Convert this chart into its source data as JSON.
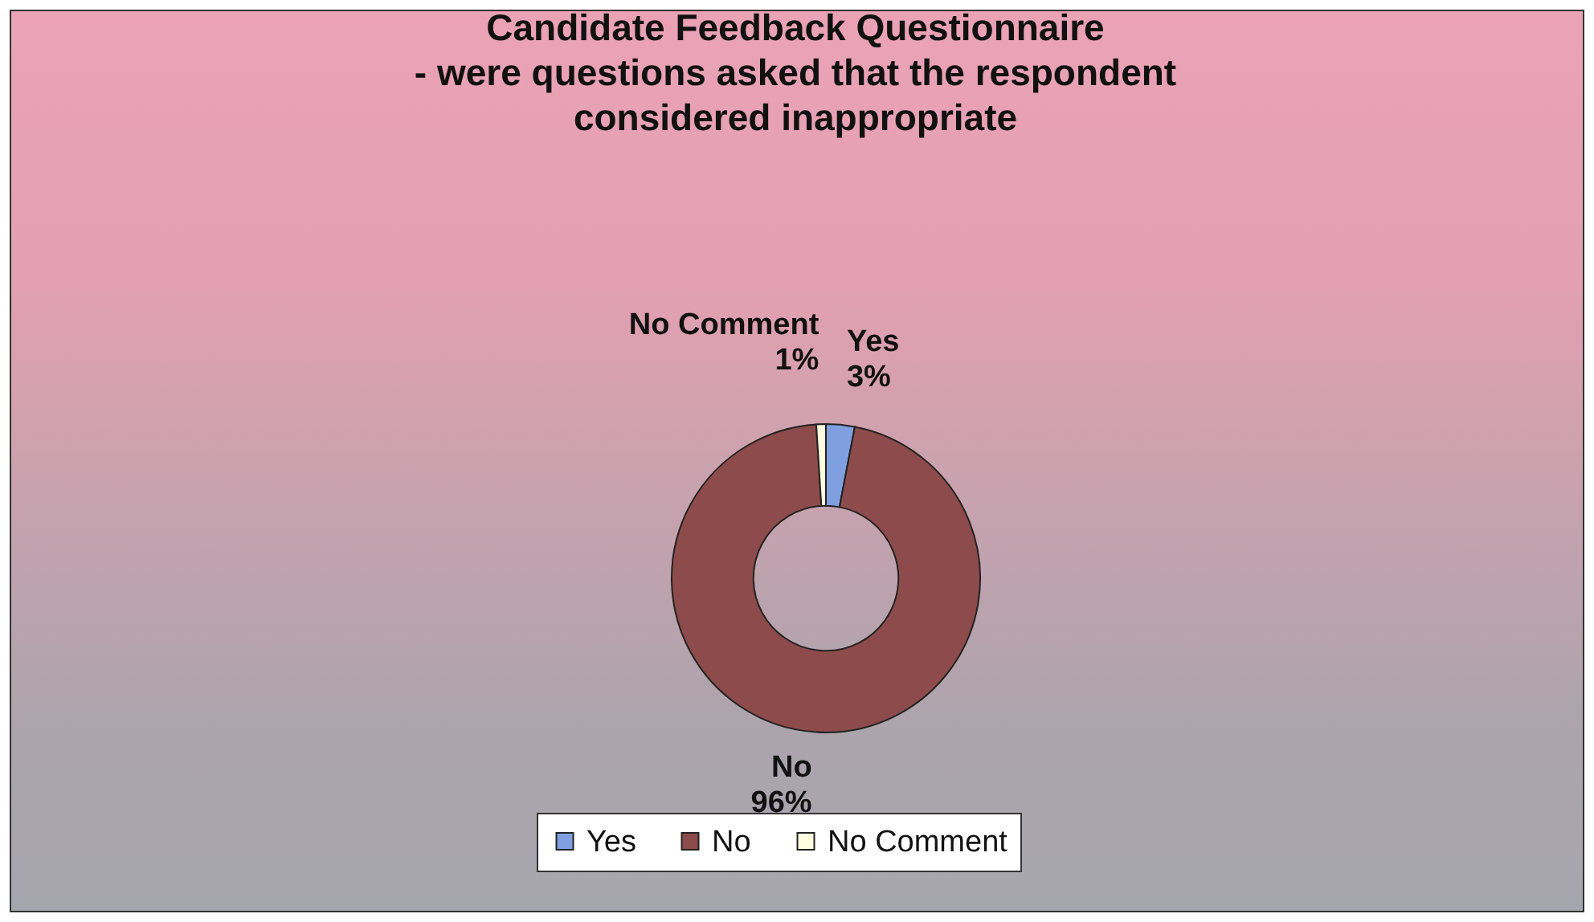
{
  "chart_data": {
    "type": "donut",
    "title": "Candidate Feedback Questionnaire\n- were questions asked that the respondent\nconsidered inappropriate",
    "categories": [
      "Yes",
      "No",
      "No Comment"
    ],
    "values": [
      3,
      96,
      1
    ],
    "colors": [
      "#7f9fe0",
      "#8e4b4b",
      "#ffffe0"
    ],
    "value_labels": [
      "3%",
      "96%",
      "1%"
    ],
    "legend": "bottom"
  }
}
